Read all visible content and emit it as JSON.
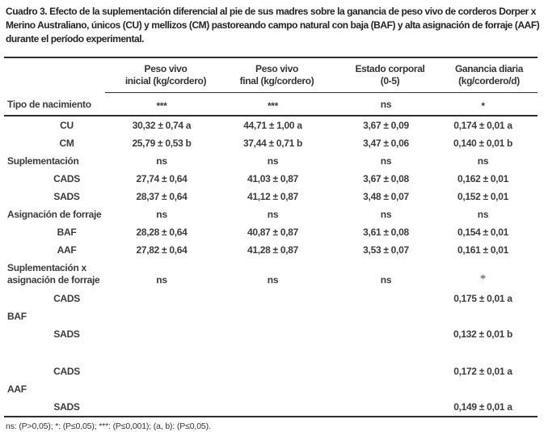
{
  "title": "Cuadro 3. Efecto de la suplementación diferencial al pie de sus madres sobre la ganancia de peso vivo de corderos Dorper x Merino Australiano, únicos (CU) y mellizos (CM) pastoreando campo natural con baja (BAF) y alta asignación de forraje (AAF) durante el período experimental.",
  "table": {
    "columns": [
      {
        "line1": "Peso vivo",
        "line2": "inicial (kg/cordero)"
      },
      {
        "line1": "Peso vivo",
        "line2": "final (kg/cordero)"
      },
      {
        "line1": "Estado corporal",
        "line2": "(0-5)"
      },
      {
        "line1": "Ganancia diaria",
        "line2": "(kg/cordero/d)"
      }
    ],
    "rows": [
      {
        "label": "Tipo de nacimiento",
        "values": [
          "***",
          "***",
          "ns",
          "*"
        ]
      },
      {
        "label": "CU",
        "values": [
          "30,32 ± 0,74 a",
          "44,71 ± 1,00 a",
          "3,67 ± 0,09",
          "0,174 ± 0,01 a"
        ]
      },
      {
        "label": "CM",
        "values": [
          "25,79 ± 0,53 b",
          "37,44 ± 0,71 b",
          "3,47 ± 0,06",
          "0,140 ± 0,01 b"
        ]
      },
      {
        "label": "Suplementación",
        "values": [
          "ns",
          "ns",
          "ns",
          "ns"
        ]
      },
      {
        "label": "CADS",
        "values": [
          "27,74 ± 0,64",
          "41,03 ± 0,87",
          "3,67 ± 0,08",
          "0,162 ± 0,01"
        ]
      },
      {
        "label": "SADS",
        "values": [
          "28,37 ± 0,64",
          "41,12 ± 0,87",
          "3,48 ± 0,07",
          "0,152 ± 0,01"
        ]
      },
      {
        "label": "Asignación de forraje",
        "values": [
          "ns",
          "ns",
          "ns",
          "ns"
        ]
      },
      {
        "label": "BAF",
        "values": [
          "28,28 ± 0,64",
          "40,87 ± 0,87",
          "3,61 ± 0,08",
          "0,154 ± 0,01"
        ]
      },
      {
        "label": "AAF",
        "values": [
          "27,82 ± 0,64",
          "41,28 ± 0,87",
          "3,53 ± 0,07",
          "0,161 ± 0,01"
        ]
      },
      {
        "label": "Suplementación x asignación de forraje",
        "values": [
          "ns",
          "ns",
          "ns",
          "*"
        ]
      },
      {
        "label": "CADS",
        "values": [
          "",
          "",
          "",
          "0,175 ± 0,01 a"
        ]
      },
      {
        "label": "BAF",
        "values": [
          "",
          "",
          "",
          ""
        ]
      },
      {
        "label": "SADS",
        "values": [
          "",
          "",
          "",
          "0,132 ± 0,01 b"
        ]
      },
      {
        "label": "CADS",
        "values": [
          "",
          "",
          "",
          "0,172 ± 0,01 a"
        ]
      },
      {
        "label": "AAF",
        "values": [
          "",
          "",
          "",
          ""
        ]
      },
      {
        "label": "SADS",
        "values": [
          "",
          "",
          "",
          "0,149 ± 0,01 a"
        ]
      }
    ]
  },
  "footnote": "ns: (P>0,05); *: (P≤0,05); ***: (P≤0,001); (a, b): (P≤0,05)."
}
